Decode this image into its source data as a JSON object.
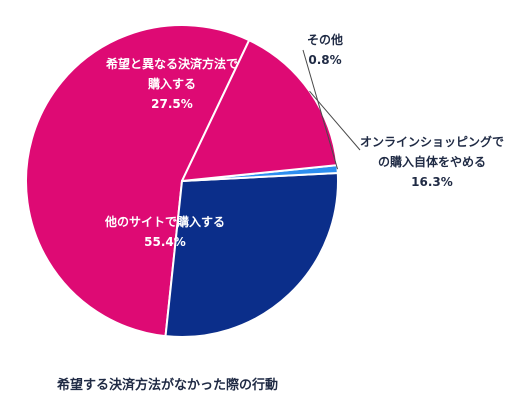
{
  "caption": "希望する決済方法がなかった際の行動",
  "colors": {
    "magenta": "#de0a74",
    "navy": "#0b2e8a",
    "sky": "#2d8ef0",
    "label_dark": "#1f2a44",
    "leader": "#4a4a4a"
  },
  "chart_data": {
    "type": "pie",
    "title": "希望する決済方法がなかった際の行動",
    "unit": "%",
    "slices": [
      {
        "label": "他のサイトで購入する",
        "value": 55.4,
        "value_label": "55.4%",
        "color": "#de0a74"
      },
      {
        "label": "希望と異なる決済方法で購入する",
        "value": 27.5,
        "value_label": "27.5%",
        "color": "#0b2e8a"
      },
      {
        "label": "その他",
        "value": 0.8,
        "value_label": "0.8%",
        "color": "#2d8ef0"
      },
      {
        "label": "オンラインショッピングでの購入自体をやめる",
        "value": 16.3,
        "value_label": "16.3%",
        "color": "#de0a74"
      }
    ]
  }
}
